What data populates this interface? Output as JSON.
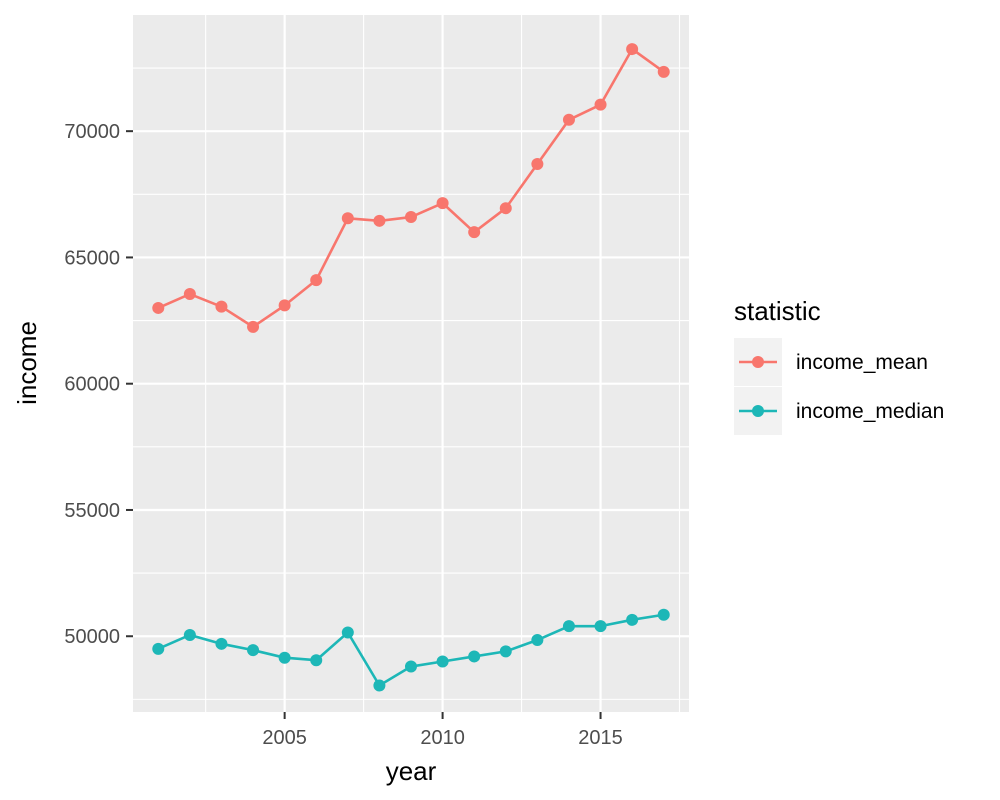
{
  "chart_data": {
    "type": "line",
    "title": "",
    "xlabel": "year",
    "ylabel": "income",
    "xlim": [
      2000.2,
      2017.8
    ],
    "ylim": [
      47000,
      74600
    ],
    "x_ticks": [
      2005,
      2010,
      2015
    ],
    "x_tick_labels": [
      "2005",
      "2010",
      "2015"
    ],
    "y_ticks": [
      50000,
      55000,
      60000,
      65000,
      70000
    ],
    "y_tick_labels": [
      "50000",
      "55000",
      "60000",
      "65000",
      "70000"
    ],
    "grid": true,
    "legend": {
      "title": "statistic",
      "position": "right"
    },
    "x": [
      2001,
      2002,
      2003,
      2004,
      2005,
      2006,
      2007,
      2008,
      2009,
      2010,
      2011,
      2012,
      2013,
      2014,
      2015,
      2016,
      2017
    ],
    "series": [
      {
        "name": "income_mean",
        "color": "#F8766D",
        "values": [
          63000,
          63550,
          63050,
          62250,
          63100,
          64100,
          66550,
          66450,
          66600,
          67150,
          66000,
          66950,
          68700,
          70450,
          71050,
          73250,
          72350
        ]
      },
      {
        "name": "income_median",
        "color": "#1DB7B7",
        "values": [
          49500,
          50050,
          49700,
          49450,
          49150,
          49050,
          50150,
          48050,
          48800,
          49000,
          49200,
          49400,
          49850,
          50400,
          50400,
          50650,
          50850
        ]
      }
    ]
  }
}
